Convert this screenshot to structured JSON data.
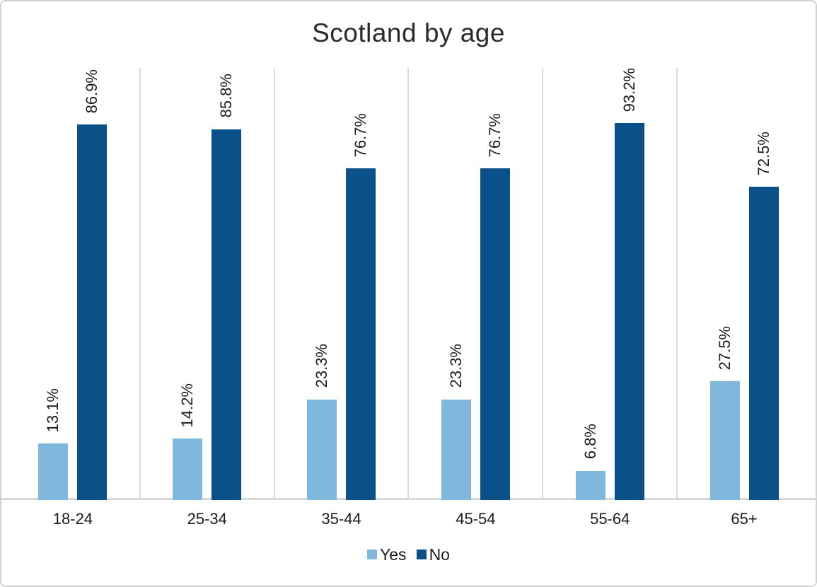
{
  "chart_data": {
    "type": "bar",
    "title": "Scotland by age",
    "categories": [
      "18-24",
      "25-34",
      "35-44",
      "45-54",
      "55-64",
      "65+"
    ],
    "series": [
      {
        "name": "Yes",
        "color": "#7fb8dc",
        "values": [
          13.1,
          14.2,
          23.3,
          23.3,
          6.8,
          27.5
        ],
        "labels": [
          "13.1%",
          "14.2%",
          "23.3%",
          "23.3%",
          "6.8%",
          "27.5%"
        ]
      },
      {
        "name": "No",
        "color": "#0a5189",
        "values": [
          86.9,
          85.8,
          76.7,
          76.7,
          93.2,
          72.5
        ],
        "labels": [
          "86.9%",
          "85.8%",
          "76.7%",
          "76.7%",
          "93.2%",
          "72.5%"
        ]
      }
    ],
    "ylim": [
      0,
      100
    ],
    "xlabel": "",
    "ylabel": "",
    "legend_position": "bottom",
    "grid": "vertical category separators only",
    "data_label_rotation": 90
  },
  "colors": {
    "separator": "#dadada",
    "axis_line": "#d9d9d9",
    "frame_border": "#d2d2d2",
    "text": "#1b1b1b",
    "title_text": "#2b2b2b"
  }
}
